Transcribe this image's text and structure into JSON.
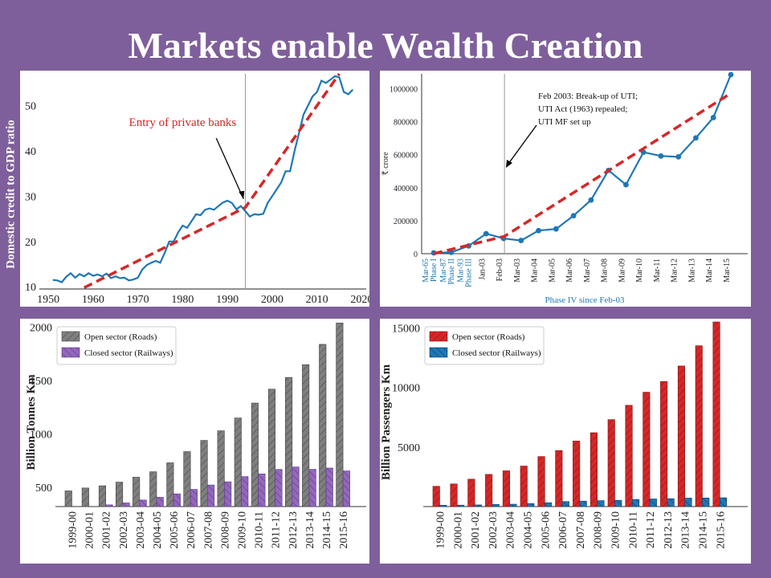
{
  "slide": {
    "title": "Markets enable Wealth Creation"
  },
  "colors": {
    "background": "#7f5f9b",
    "line_blue": "#1f77b4",
    "trend_red": "#d62728",
    "roads_gray": "#7f7f7f",
    "rail_purple": "#9467bd",
    "roads_red": "#d62728",
    "rail_blue": "#1f77b4"
  },
  "chart_data": [
    {
      "type": "line",
      "id": "credit",
      "ylabel": "Domestic credit to GDP ratio",
      "xlim": [
        1948,
        2021
      ],
      "ylim": [
        9.5,
        57
      ],
      "xticks": [
        1950,
        1960,
        1970,
        1980,
        1990,
        2000,
        2010,
        2020
      ],
      "yticks": [
        10,
        20,
        30,
        40,
        50
      ],
      "vline_x": 1994,
      "annotation": "Entry of private banks",
      "series": [
        {
          "x": [
            1951,
            1952,
            1953,
            1954,
            1955,
            1956,
            1957,
            1958,
            1959,
            1960,
            1961,
            1962,
            1963,
            1964,
            1965,
            1966,
            1967,
            1968,
            1969,
            1970,
            1971,
            1972,
            1973,
            1974,
            1975,
            1976,
            1977,
            1978,
            1979,
            1980,
            1981,
            1982,
            1983,
            1984,
            1985,
            1986,
            1987,
            1988,
            1989,
            1990,
            1991,
            1992,
            1993,
            1994,
            1995,
            1996,
            1997,
            1998,
            1999,
            2000,
            2001,
            2002,
            2003,
            2004,
            2005,
            2006,
            2007,
            2008,
            2009,
            2010,
            2011,
            2012,
            2013,
            2014,
            2015,
            2016,
            2017,
            2018
          ],
          "y": [
            11.5,
            11.4,
            11.0,
            12.2,
            13.0,
            12.0,
            12.8,
            12.3,
            13.0,
            12.4,
            12.7,
            12.3,
            12.9,
            11.9,
            12.3,
            11.9,
            12.0,
            11.4,
            11.6,
            12.0,
            13.8,
            14.8,
            15.3,
            15.7,
            15.3,
            17.5,
            20.0,
            20.0,
            22.0,
            23.5,
            23.0,
            24.5,
            26.0,
            25.8,
            27.0,
            27.3,
            27.0,
            27.8,
            28.6,
            29.0,
            28.5,
            27.1,
            27.8,
            26.7,
            25.5,
            26.0,
            25.9,
            26.1,
            28.5,
            30.0,
            31.5,
            33.0,
            35.5,
            35.5,
            40.0,
            44.0,
            48.0,
            50.0,
            52.0,
            53.0,
            55.5,
            55.0,
            55.7,
            56.5,
            56.2,
            53.0,
            52.5,
            53.5
          ]
        }
      ],
      "trend": {
        "x": [
          1958,
          1994,
          2015
        ],
        "y": [
          9.8,
          27.5,
          57.0
        ]
      }
    },
    {
      "type": "line",
      "id": "mutual_funds",
      "ylabel": "₹ crore",
      "xlabel": "Phase IV since Feb-03",
      "ylim": [
        0,
        1090000
      ],
      "yticks": [
        0,
        200000,
        400000,
        600000,
        800000,
        1000000
      ],
      "ytick_labels": [
        "0",
        "200000",
        "400000",
        "600000",
        "800000",
        "1000000"
      ],
      "categories": [
        "Mar-65\nPhase I",
        "Mar-87\nPhase II",
        "Mar-93\nPhase III",
        "Jan-03",
        "Feb-03",
        "Mar-03",
        "Mar-04",
        "Mar-05",
        "Mar-06",
        "Mar-07",
        "Mar-08",
        "Mar-09",
        "Mar-10",
        "Mar-11",
        "Mar-12",
        "Mar-13",
        "Mar-14",
        "Mar-15"
      ],
      "category_colors": [
        "blue",
        "blue",
        "blue",
        "black",
        "black",
        "black",
        "black",
        "black",
        "black",
        "black",
        "black",
        "black",
        "black",
        "black",
        "black",
        "black",
        "black",
        "black"
      ],
      "vline_index": 4.05,
      "annotation": "Feb 2003: Break-up of UTI;\nUTI Act (1963) repealed;\nUTI MF set up",
      "values": [
        5000,
        8000,
        47000,
        121000,
        92000,
        80000,
        140000,
        150000,
        230000,
        325000,
        505000,
        418000,
        615000,
        592000,
        587000,
        702000,
        825000,
        1085000
      ],
      "trend": {
        "x_index": [
          0,
          4.05,
          17
        ],
        "y": [
          0,
          105000,
          972000
        ]
      }
    },
    {
      "type": "bar",
      "id": "freight",
      "ylabel": "Billion Tonnes Km",
      "ylim": [
        320,
        2050
      ],
      "yticks": [
        500,
        1000,
        1500,
        2000
      ],
      "categories": [
        "1999-00",
        "2000-01",
        "2001-02",
        "2002-03",
        "2003-04",
        "2004-05",
        "2005-06",
        "2006-07",
        "2007-08",
        "2008-09",
        "2009-10",
        "2010-11",
        "2011-12",
        "2012-13",
        "2013-14",
        "2014-15",
        "2015-16"
      ],
      "series": [
        {
          "name": "Open sector (Roads)",
          "values": [
            467,
            494,
            515,
            549,
            595,
            646,
            730,
            835,
            940,
            1030,
            1150,
            1290,
            1420,
            1530,
            1650,
            1840,
            2040
          ]
        },
        {
          "name": "Closed sector (Railways)",
          "values": [
            305,
            313,
            336,
            354,
            381,
            407,
            439,
            481,
            522,
            552,
            601,
            626,
            668,
            691,
            669,
            681,
            654
          ]
        }
      ]
    },
    {
      "type": "bar",
      "id": "passenger",
      "ylabel": "Billion Passengers Km",
      "ylim": [
        0,
        15500
      ],
      "yticks": [
        5000,
        10000,
        15000
      ],
      "categories": [
        "1999-00",
        "2000-01",
        "2001-02",
        "2002-03",
        "2003-04",
        "2004-05",
        "2005-06",
        "2006-07",
        "2007-08",
        "2008-09",
        "2009-10",
        "2010-11",
        "2011-12",
        "2012-13",
        "2013-14",
        "2014-15",
        "2015-16"
      ],
      "series": [
        {
          "name": "Open sector (Roads)",
          "values": [
            1700,
            1900,
            2300,
            2700,
            3000,
            3400,
            4200,
            4700,
            5500,
            6200,
            7300,
            8500,
            9600,
            10500,
            11800,
            13500,
            15500
          ]
        },
        {
          "name": "Closed sector (Railways)",
          "values": [
            110,
            120,
            140,
            180,
            200,
            250,
            320,
            420,
            460,
            500,
            530,
            600,
            640,
            660,
            710,
            720,
            740
          ]
        }
      ]
    }
  ]
}
